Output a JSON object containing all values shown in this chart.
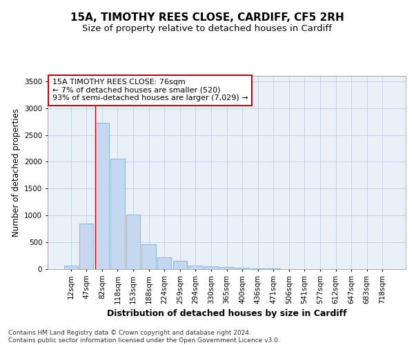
{
  "title_line1": "15A, TIMOTHY REES CLOSE, CARDIFF, CF5 2RH",
  "title_line2": "Size of property relative to detached houses in Cardiff",
  "xlabel": "Distribution of detached houses by size in Cardiff",
  "ylabel": "Number of detached properties",
  "categories": [
    "12sqm",
    "47sqm",
    "82sqm",
    "118sqm",
    "153sqm",
    "188sqm",
    "224sqm",
    "259sqm",
    "294sqm",
    "330sqm",
    "365sqm",
    "400sqm",
    "436sqm",
    "471sqm",
    "506sqm",
    "541sqm",
    "577sqm",
    "612sqm",
    "647sqm",
    "683sqm",
    "718sqm"
  ],
  "values": [
    60,
    850,
    2730,
    2060,
    1010,
    460,
    220,
    150,
    70,
    55,
    40,
    25,
    18,
    12,
    0,
    0,
    0,
    0,
    0,
    0,
    0
  ],
  "bar_color": "#c5d8f0",
  "bar_edge_color": "#7aadd4",
  "vline_color": "#cc0000",
  "annotation_text": "15A TIMOTHY REES CLOSE: 76sqm\n← 7% of detached houses are smaller (520)\n93% of semi-detached houses are larger (7,029) →",
  "annotation_box_facecolor": "#ffffff",
  "annotation_box_edgecolor": "#cc0000",
  "ylim": [
    0,
    3600
  ],
  "yticks": [
    0,
    500,
    1000,
    1500,
    2000,
    2500,
    3000,
    3500
  ],
  "grid_color": "#c8d4e8",
  "background_color": "#eaf0f8",
  "footnote": "Contains HM Land Registry data © Crown copyright and database right 2024.\nContains public sector information licensed under the Open Government Licence v3.0.",
  "title_fontsize": 11,
  "subtitle_fontsize": 9.5,
  "xlabel_fontsize": 9,
  "ylabel_fontsize": 8.5,
  "tick_fontsize": 7.5,
  "annotation_fontsize": 8,
  "footnote_fontsize": 6.5
}
